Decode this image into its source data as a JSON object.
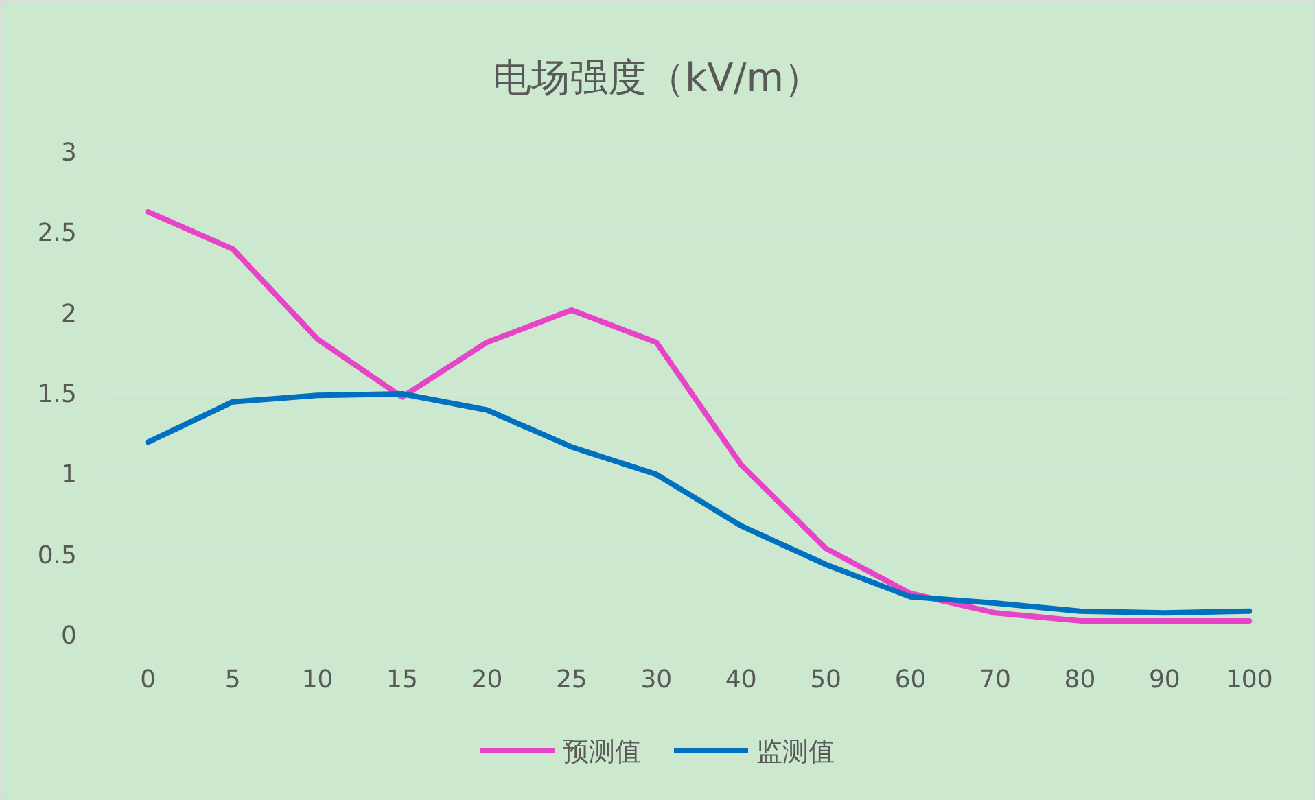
{
  "chart_data": {
    "type": "line",
    "title": "电场强度（kV/m）",
    "categories": [
      "0",
      "5",
      "10",
      "15",
      "20",
      "25",
      "30",
      "40",
      "50",
      "60",
      "70",
      "80",
      "90",
      "100"
    ],
    "series": [
      {
        "name": "预测值",
        "color": "#e844c8",
        "values": [
          2.63,
          2.4,
          1.84,
          1.48,
          1.82,
          2.02,
          1.82,
          1.06,
          0.54,
          0.26,
          0.14,
          0.09,
          0.09,
          0.09
        ]
      },
      {
        "name": "监测值",
        "color": "#0070c0",
        "values": [
          1.2,
          1.45,
          1.49,
          1.5,
          1.4,
          1.17,
          1.0,
          0.68,
          0.44,
          0.24,
          0.2,
          0.15,
          0.14,
          0.15
        ]
      }
    ],
    "ylim": [
      0,
      3
    ],
    "yticks": [
      0,
      0.5,
      1,
      1.5,
      2,
      2.5,
      3
    ],
    "grid": "y",
    "legend": "bottom",
    "marker": "none",
    "line_style": "solid"
  }
}
